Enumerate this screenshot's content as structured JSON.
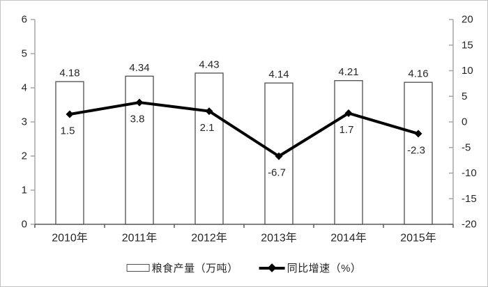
{
  "chart_data": {
    "type": "bar",
    "combo": "bar+line",
    "title": "",
    "categories": [
      "2010年",
      "2011年",
      "2012年",
      "2013年",
      "2014年",
      "2015年"
    ],
    "series": [
      {
        "name": "粮食产量（万吨）",
        "kind": "bar",
        "axis": "left",
        "values": [
          4.18,
          4.34,
          4.43,
          4.14,
          4.21,
          4.16
        ],
        "labels": [
          "4.18",
          "4.34",
          "4.43",
          "4.14",
          "4.21",
          "4.16"
        ]
      },
      {
        "name": "同比增速（%）",
        "kind": "line",
        "axis": "right",
        "values": [
          1.5,
          3.8,
          2.1,
          -6.7,
          1.7,
          -2.3
        ],
        "labels": [
          "1.5",
          "3.8",
          "2.1",
          "-6.7",
          "1.7",
          "-2.3"
        ]
      }
    ],
    "left_axis": {
      "min": 0,
      "max": 6,
      "step": 1,
      "ticks_top_to_bottom": [
        "6",
        "5",
        "4",
        "3",
        "2",
        "1",
        "0"
      ]
    },
    "right_axis": {
      "min": -20,
      "max": 20,
      "step": 5,
      "ticks_top_to_bottom": [
        "20",
        "15",
        "10",
        "5",
        "0",
        "-5",
        "-10",
        "-15",
        "-20"
      ]
    },
    "grid": false,
    "legend_position": "bottom",
    "style": {
      "bar_fill": "#ffffff",
      "bar_stroke": "#4d4d4d",
      "line_color": "#000000",
      "marker_color": "#000000",
      "value_axis_color": "#a6a6a6",
      "x_axis_color": "#595959",
      "text_color": "#262626",
      "frame_border": "#c3c3c3"
    }
  }
}
